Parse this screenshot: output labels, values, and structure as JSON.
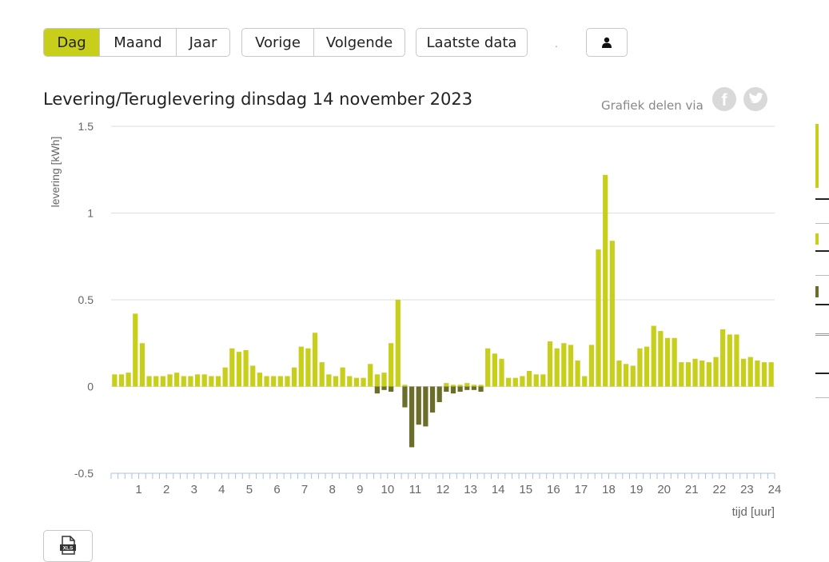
{
  "toolbar": {
    "period_buttons": [
      "Dag",
      "Maand",
      "Jaar"
    ],
    "nav_buttons": [
      "Vorige",
      "Volgende"
    ],
    "last_data_label": "Laatste data",
    "dot_label": "."
  },
  "share": {
    "label": "Grafiek delen via"
  },
  "colors": {
    "levering": "#c8cf1b",
    "teruglevering": "#6b6e2a",
    "active_button": "#c8cf1b",
    "grid": "#dddddd",
    "axis_ticks": "#a9c3dc"
  },
  "icons": {
    "user": "user-icon",
    "facebook": "facebook-icon",
    "twitter": "twitter-icon",
    "export": "xls-icon"
  },
  "chart_data": {
    "type": "bar",
    "title": "Levering/Teruglevering dinsdag 14 november 2023",
    "ylabel": "levering [kWh]",
    "xlabel": "tijd [uur]",
    "ylim": [
      -0.5,
      1.5
    ],
    "xlim": [
      0,
      24
    ],
    "yticks": [
      1.5,
      1,
      0.5,
      0,
      -0.5
    ],
    "ytick_labels": [
      "1.5",
      "1",
      "0.5",
      "0",
      "-0.5"
    ],
    "xticks": [
      "1",
      "2",
      "3",
      "4",
      "5",
      "6",
      "7",
      "8",
      "9",
      "10",
      "11",
      "12",
      "13",
      "14",
      "15",
      "16",
      "17",
      "18",
      "19",
      "20",
      "21",
      "22",
      "23",
      "24"
    ],
    "interval": "15 min",
    "grid": true,
    "series": [
      {
        "role": "levering",
        "values": [
          0.07,
          0.07,
          0.08,
          0.42,
          0.25,
          0.06,
          0.06,
          0.06,
          0.07,
          0.08,
          0.06,
          0.06,
          0.07,
          0.07,
          0.06,
          0.06,
          0.11,
          0.22,
          0.2,
          0.21,
          0.12,
          0.08,
          0.06,
          0.06,
          0.06,
          0.06,
          0.11,
          0.23,
          0.22,
          0.31,
          0.14,
          0.07,
          0.06,
          0.11,
          0.06,
          0.05,
          0.05,
          0.13,
          0.07,
          0.08,
          0.25,
          0.5,
          0.01,
          0,
          0,
          0,
          0,
          0,
          0.02,
          0.01,
          0.01,
          0.02,
          0.01,
          0.01,
          0.22,
          0.19,
          0.16,
          0.05,
          0.05,
          0.06,
          0.09,
          0.07,
          0.07,
          0.26,
          0.22,
          0.25,
          0.24,
          0.15,
          0.06,
          0.24,
          0.79,
          1.22,
          0.84,
          0.15,
          0.13,
          0.12,
          0.22,
          0.23,
          0.35,
          0.32,
          0.28,
          0.28,
          0.14,
          0.14,
          0.16,
          0.15,
          0.14,
          0.17,
          0.33,
          0.3,
          0.3,
          0.16,
          0.17,
          0.15,
          0.14,
          0.14
        ]
      },
      {
        "role": "teruglevering",
        "values": [
          0,
          0,
          0,
          0,
          0,
          0,
          0,
          0,
          0,
          0,
          0,
          0,
          0,
          0,
          0,
          0,
          0,
          0,
          0,
          0,
          0,
          0,
          0,
          0,
          0,
          0,
          0,
          0,
          0,
          0,
          0,
          0,
          0,
          0,
          0,
          0,
          0,
          0,
          -0.04,
          -0.02,
          -0.03,
          0,
          -0.12,
          -0.35,
          -0.22,
          -0.23,
          -0.15,
          -0.09,
          -0.03,
          -0.04,
          -0.03,
          -0.02,
          -0.02,
          -0.03,
          0,
          0,
          0,
          0,
          0,
          0,
          0,
          0,
          0,
          0,
          0,
          0,
          0,
          0,
          0,
          0,
          0,
          0,
          0,
          0,
          0,
          0,
          0,
          0,
          0,
          0,
          0,
          0,
          0,
          0,
          0,
          0,
          0,
          0,
          0,
          0,
          0,
          0,
          0,
          0,
          0,
          0
        ]
      }
    ]
  }
}
